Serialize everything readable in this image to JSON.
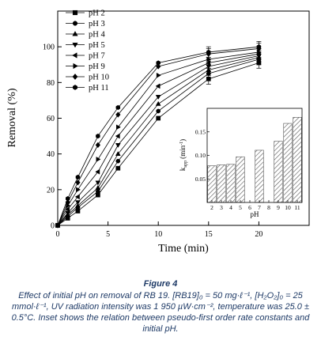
{
  "chart_data": [
    {
      "type": "line",
      "xlabel": "Time (min)",
      "ylabel": "Removal (%)",
      "xlim": [
        0,
        25
      ],
      "ylim": [
        0,
        120
      ],
      "xticks": [
        0,
        5,
        10,
        15,
        20
      ],
      "yticks": [
        0,
        20,
        40,
        60,
        80,
        100
      ],
      "legend_position": "top-left",
      "error_bars": true,
      "series": [
        {
          "name": "pH 2",
          "marker": "square",
          "x": [
            0,
            1,
            2,
            4,
            6,
            10,
            15,
            20
          ],
          "y": [
            0,
            4,
            8,
            17,
            32,
            60,
            82,
            91
          ]
        },
        {
          "name": "pH 3",
          "marker": "circle",
          "x": [
            0,
            1,
            2,
            4,
            6,
            10,
            15,
            20
          ],
          "y": [
            0,
            5,
            10,
            19,
            36,
            64,
            85,
            93
          ]
        },
        {
          "name": "pH 4",
          "marker": "triangle-up",
          "x": [
            0,
            1,
            2,
            4,
            6,
            10,
            15,
            20
          ],
          "y": [
            0,
            6,
            11,
            21,
            40,
            68,
            87,
            94
          ]
        },
        {
          "name": "pH 5",
          "marker": "triangle-down",
          "x": [
            0,
            1,
            2,
            4,
            6,
            10,
            15,
            20
          ],
          "y": [
            0,
            7,
            13,
            24,
            45,
            72,
            89,
            95
          ]
        },
        {
          "name": "pH 7",
          "marker": "triangle-left",
          "x": [
            0,
            1,
            2,
            4,
            6,
            10,
            15,
            20
          ],
          "y": [
            0,
            9,
            16,
            30,
            50,
            78,
            91,
            96
          ]
        },
        {
          "name": "pH 9",
          "marker": "triangle-right",
          "x": [
            0,
            1,
            2,
            4,
            6,
            10,
            15,
            20
          ],
          "y": [
            0,
            11,
            20,
            37,
            55,
            84,
            93,
            97
          ]
        },
        {
          "name": "pH 10",
          "marker": "diamond",
          "x": [
            0,
            1,
            2,
            4,
            6,
            10,
            15,
            20
          ],
          "y": [
            0,
            13,
            24,
            45,
            62,
            89,
            96,
            99
          ]
        },
        {
          "name": "pH 11",
          "marker": "hexagon",
          "x": [
            0,
            1,
            2,
            4,
            6,
            10,
            15,
            20
          ],
          "y": [
            0,
            15,
            27,
            50,
            66,
            91,
            97,
            100
          ]
        }
      ]
    },
    {
      "type": "bar",
      "inset": true,
      "xlabel": "pH",
      "ylabel_main": "k",
      "ylabel_sub": "app",
      "ylabel_unit": "(min",
      "ylabel_sup": "-1",
      "ylabel_close": ")",
      "xlim": [
        1.5,
        11.5
      ],
      "ylim": [
        0,
        0.2
      ],
      "xticks": [
        2,
        3,
        4,
        5,
        6,
        7,
        8,
        9,
        10,
        11
      ],
      "yticks": [
        0.05,
        0.1,
        0.15
      ],
      "ytick_labels": [
        "0.05",
        "0.10",
        "0.15"
      ],
      "categories": [
        2,
        3,
        4,
        5,
        7,
        9,
        10,
        11
      ],
      "values": [
        0.078,
        0.08,
        0.081,
        0.097,
        0.111,
        0.13,
        0.168,
        0.181
      ]
    }
  ],
  "caption": {
    "title": "Figure 4",
    "text": "Effect of initial pH on removal of RB 19. [RB19]₀ = 50 mg·ℓ⁻¹, [H₂O₂]₀ = 25 mmol·ℓ⁻¹, UV radiation intensity was 1 950 µW·cm⁻², temperature was 25.0 ± 0.5°C. Inset shows the relation between pseudo-first order rate constants and initial pH."
  },
  "colors": {
    "caption_text": "#1e3a66",
    "lines": "#000000",
    "bars_fill": "#ffffff",
    "bars_hatch": "#555555"
  }
}
